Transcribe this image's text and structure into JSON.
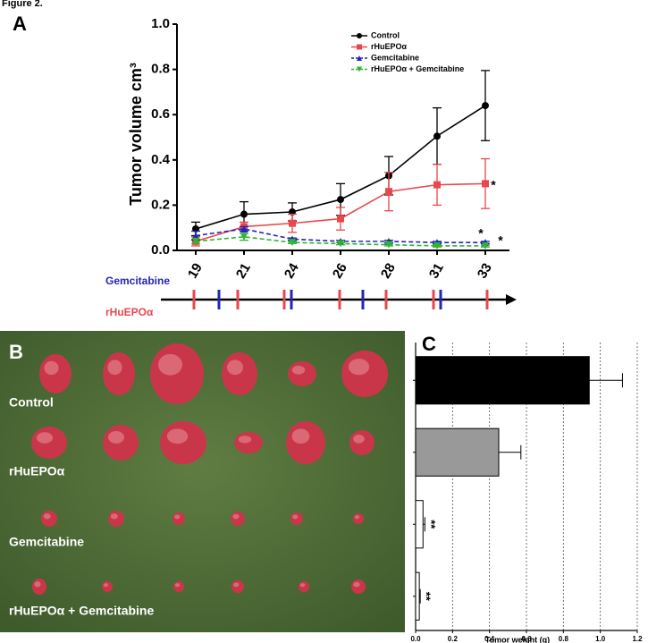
{
  "figure_label": "Figure 2.",
  "panel_labels": [
    "A",
    "B",
    "C"
  ],
  "schedule": {
    "labels": [
      "Gemcitabine",
      "rHuEPOα"
    ]
  },
  "photo": {
    "labels": [
      "Control",
      "rHuEPOα",
      "Gemcitabine",
      "rHuEPOα + Gemcitabine"
    ]
  },
  "chart_data": [
    {
      "type": "line",
      "y_label": "Tumor volume cm³",
      "categories": [
        "19",
        "21",
        "24",
        "26",
        "28",
        "31",
        "33"
      ],
      "ylim": [
        0,
        1.0
      ],
      "yticks": [
        {
          "value": 0,
          "label": "0.0"
        },
        0.2,
        0.4,
        0.6,
        0.8,
        {
          "value": 1.0,
          "label": "1.0"
        }
      ],
      "series": [
        {
          "name": "Control",
          "color": "#000000",
          "marker": "circle",
          "dashed": false,
          "values": [
            0.095,
            0.16,
            0.17,
            0.225,
            0.33,
            0.505,
            0.64
          ],
          "errors": [
            0.03,
            0.055,
            0.04,
            0.07,
            0.085,
            0.125,
            0.155
          ]
        },
        {
          "name": "rHuEPOα",
          "color": "#e8474c",
          "marker": "square",
          "dashed": false,
          "values": [
            0.04,
            0.105,
            0.12,
            0.14,
            0.26,
            0.29,
            0.295
          ],
          "errors": [
            0.02,
            0.02,
            0.04,
            0.05,
            0.085,
            0.09,
            0.11
          ]
        },
        {
          "name": "Gemcitabine",
          "color": "#2424b8",
          "marker": "triangle",
          "dashed": true,
          "values": [
            0.065,
            0.095,
            0.05,
            0.04,
            0.04,
            0.035,
            0.035
          ],
          "errors": [
            0.02,
            0.01,
            0.005,
            0.005,
            0.005,
            0.005,
            0.005
          ]
        },
        {
          "name": "rHuEPOα + Gemcitabine",
          "color": "#2fb52f",
          "marker": "triangle-down",
          "dashed": true,
          "values": [
            0.04,
            0.06,
            0.035,
            0.03,
            0.025,
            0.02,
            0.02
          ],
          "errors": [
            0.01,
            0.015,
            0.005,
            0.005,
            0.005,
            0.005,
            0.005
          ]
        }
      ],
      "annotations": [
        "*",
        "*",
        "*"
      ]
    },
    {
      "type": "bar",
      "orientation": "horizontal",
      "x_label": "Tumor weight (g)",
      "categories": [
        null,
        null,
        null,
        null
      ],
      "values": [
        0.94,
        0.45,
        0.04,
        0.02
      ],
      "errors": [
        0.18,
        0.12,
        0.01,
        0.005
      ],
      "colors": [
        "#000000",
        "#999999",
        "#ffffff",
        "#ffffff"
      ],
      "xlim": [
        0,
        1.2
      ],
      "xticks": [
        {
          "value": 0,
          "label": "0.0"
        },
        0.2,
        0.4,
        0.6,
        0.8,
        {
          "value": 1.0,
          "label": "1.0"
        },
        1.2
      ],
      "grid": true,
      "annotations": [
        "**",
        "**"
      ]
    }
  ]
}
